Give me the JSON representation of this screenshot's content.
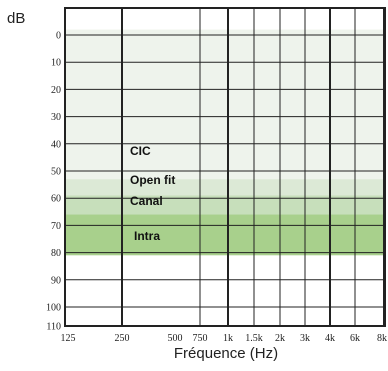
{
  "chart_data": {
    "type": "area",
    "y_unit": "dB",
    "xlabel": "Fréquence (Hz)",
    "x_ticks": [
      "125",
      "250",
      "500",
      "750",
      "1k",
      "1.5k",
      "2k",
      "3k",
      "4k",
      "6k",
      "8k"
    ],
    "y_ticks": [
      0,
      10,
      20,
      30,
      40,
      50,
      60,
      70,
      80,
      90,
      100,
      110
    ],
    "ylim": [
      110,
      0
    ],
    "y_inverted": true,
    "bands": [
      {
        "name": "CIC",
        "from_db": -2,
        "to_db": 53,
        "color": "#eef3ec"
      },
      {
        "name": "Open fit",
        "from_db": 53,
        "to_db": 59,
        "color": "#dce9d6"
      },
      {
        "name": "Canal",
        "from_db": 59,
        "to_db": 66,
        "color": "#c7dfbb"
      },
      {
        "name": "Intra",
        "from_db": 66,
        "to_db": 81,
        "color": "#a8d08c"
      }
    ],
    "grid": true
  }
}
